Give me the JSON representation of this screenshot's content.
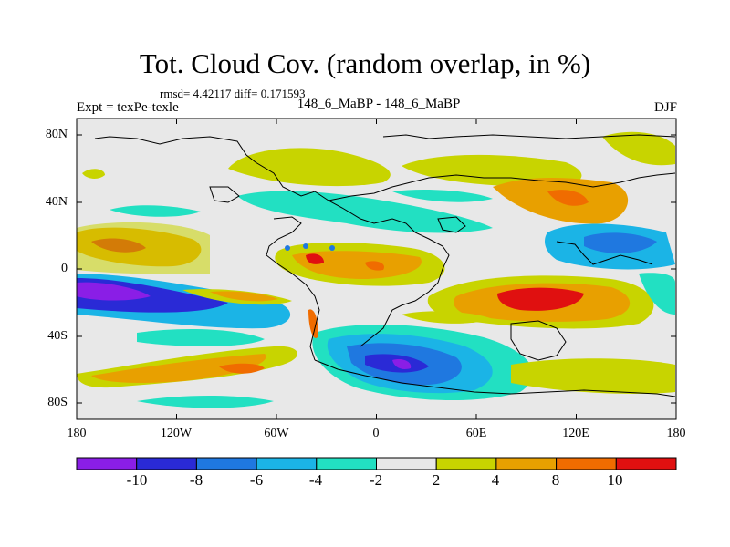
{
  "title": "Tot. Cloud Cov. (random overlap, in %)",
  "stats": "rmsd= 4.42117 diff= 0.171593",
  "experiment": "Expt = texPe-texle",
  "center_label": "148_6_MaBP - 148_6_MaBP",
  "season": "DJF",
  "axes": {
    "x_ticks": [
      "180",
      "120W",
      "60W",
      "0",
      "60E",
      "120E",
      "180"
    ],
    "y_ticks": [
      "80N",
      "40N",
      "0",
      "40S",
      "80S"
    ]
  },
  "colorbar": {
    "labels": [
      "-10",
      "-8",
      "-6",
      "-4",
      "-2",
      "2",
      "4",
      "8",
      "10"
    ],
    "colors": [
      "#8a1ee6",
      "#2a2ad6",
      "#1f78e0",
      "#1bb4e6",
      "#22e0c2",
      "#e8e8e8",
      "#c8d400",
      "#e8a000",
      "#f06c00",
      "#e01010"
    ]
  },
  "palette": {
    "background": "#e8e8e8",
    "yellow": "#c8d400",
    "orange": "#e8a000",
    "dark_orange": "#f06c00",
    "red": "#e01010",
    "teal": "#22e0c2",
    "cyan": "#1bb4e6",
    "blue": "#1f78e0",
    "navy": "#2a2ad6",
    "purple": "#8a1ee6"
  }
}
